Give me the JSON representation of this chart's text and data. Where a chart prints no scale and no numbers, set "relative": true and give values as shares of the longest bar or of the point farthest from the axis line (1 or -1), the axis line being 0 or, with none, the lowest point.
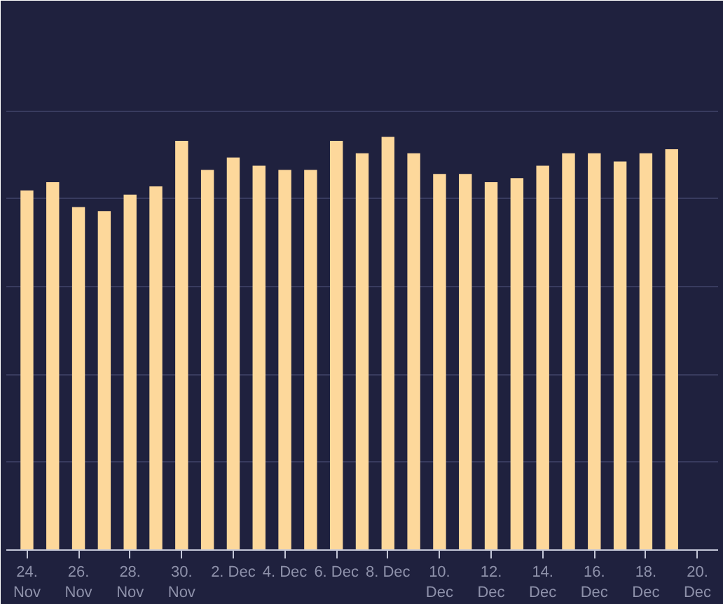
{
  "chart_data": {
    "type": "bar",
    "relative": true,
    "grid": "y",
    "color": "#fdd89b",
    "categories": [
      "24. Nov",
      null,
      "26. Nov",
      null,
      "28. Nov",
      null,
      "30. Nov",
      null,
      "2. Dec",
      null,
      "4. Dec",
      null,
      "6. Dec",
      null,
      "8. Dec",
      null,
      "10. Dec",
      null,
      "12. Dec",
      null,
      "14. Dec",
      null,
      "16. Dec",
      null,
      "18. Dec",
      null,
      "20. Dec"
    ],
    "values": [
      0.87,
      0.89,
      0.83,
      0.82,
      0.86,
      0.88,
      0.99,
      0.92,
      0.95,
      0.93,
      0.92,
      0.92,
      0.99,
      0.96,
      1,
      0.96,
      0.91,
      0.91,
      0.89,
      0.9,
      0.93,
      0.96,
      0.96,
      0.94,
      0.96,
      0.97,
      null
    ]
  }
}
